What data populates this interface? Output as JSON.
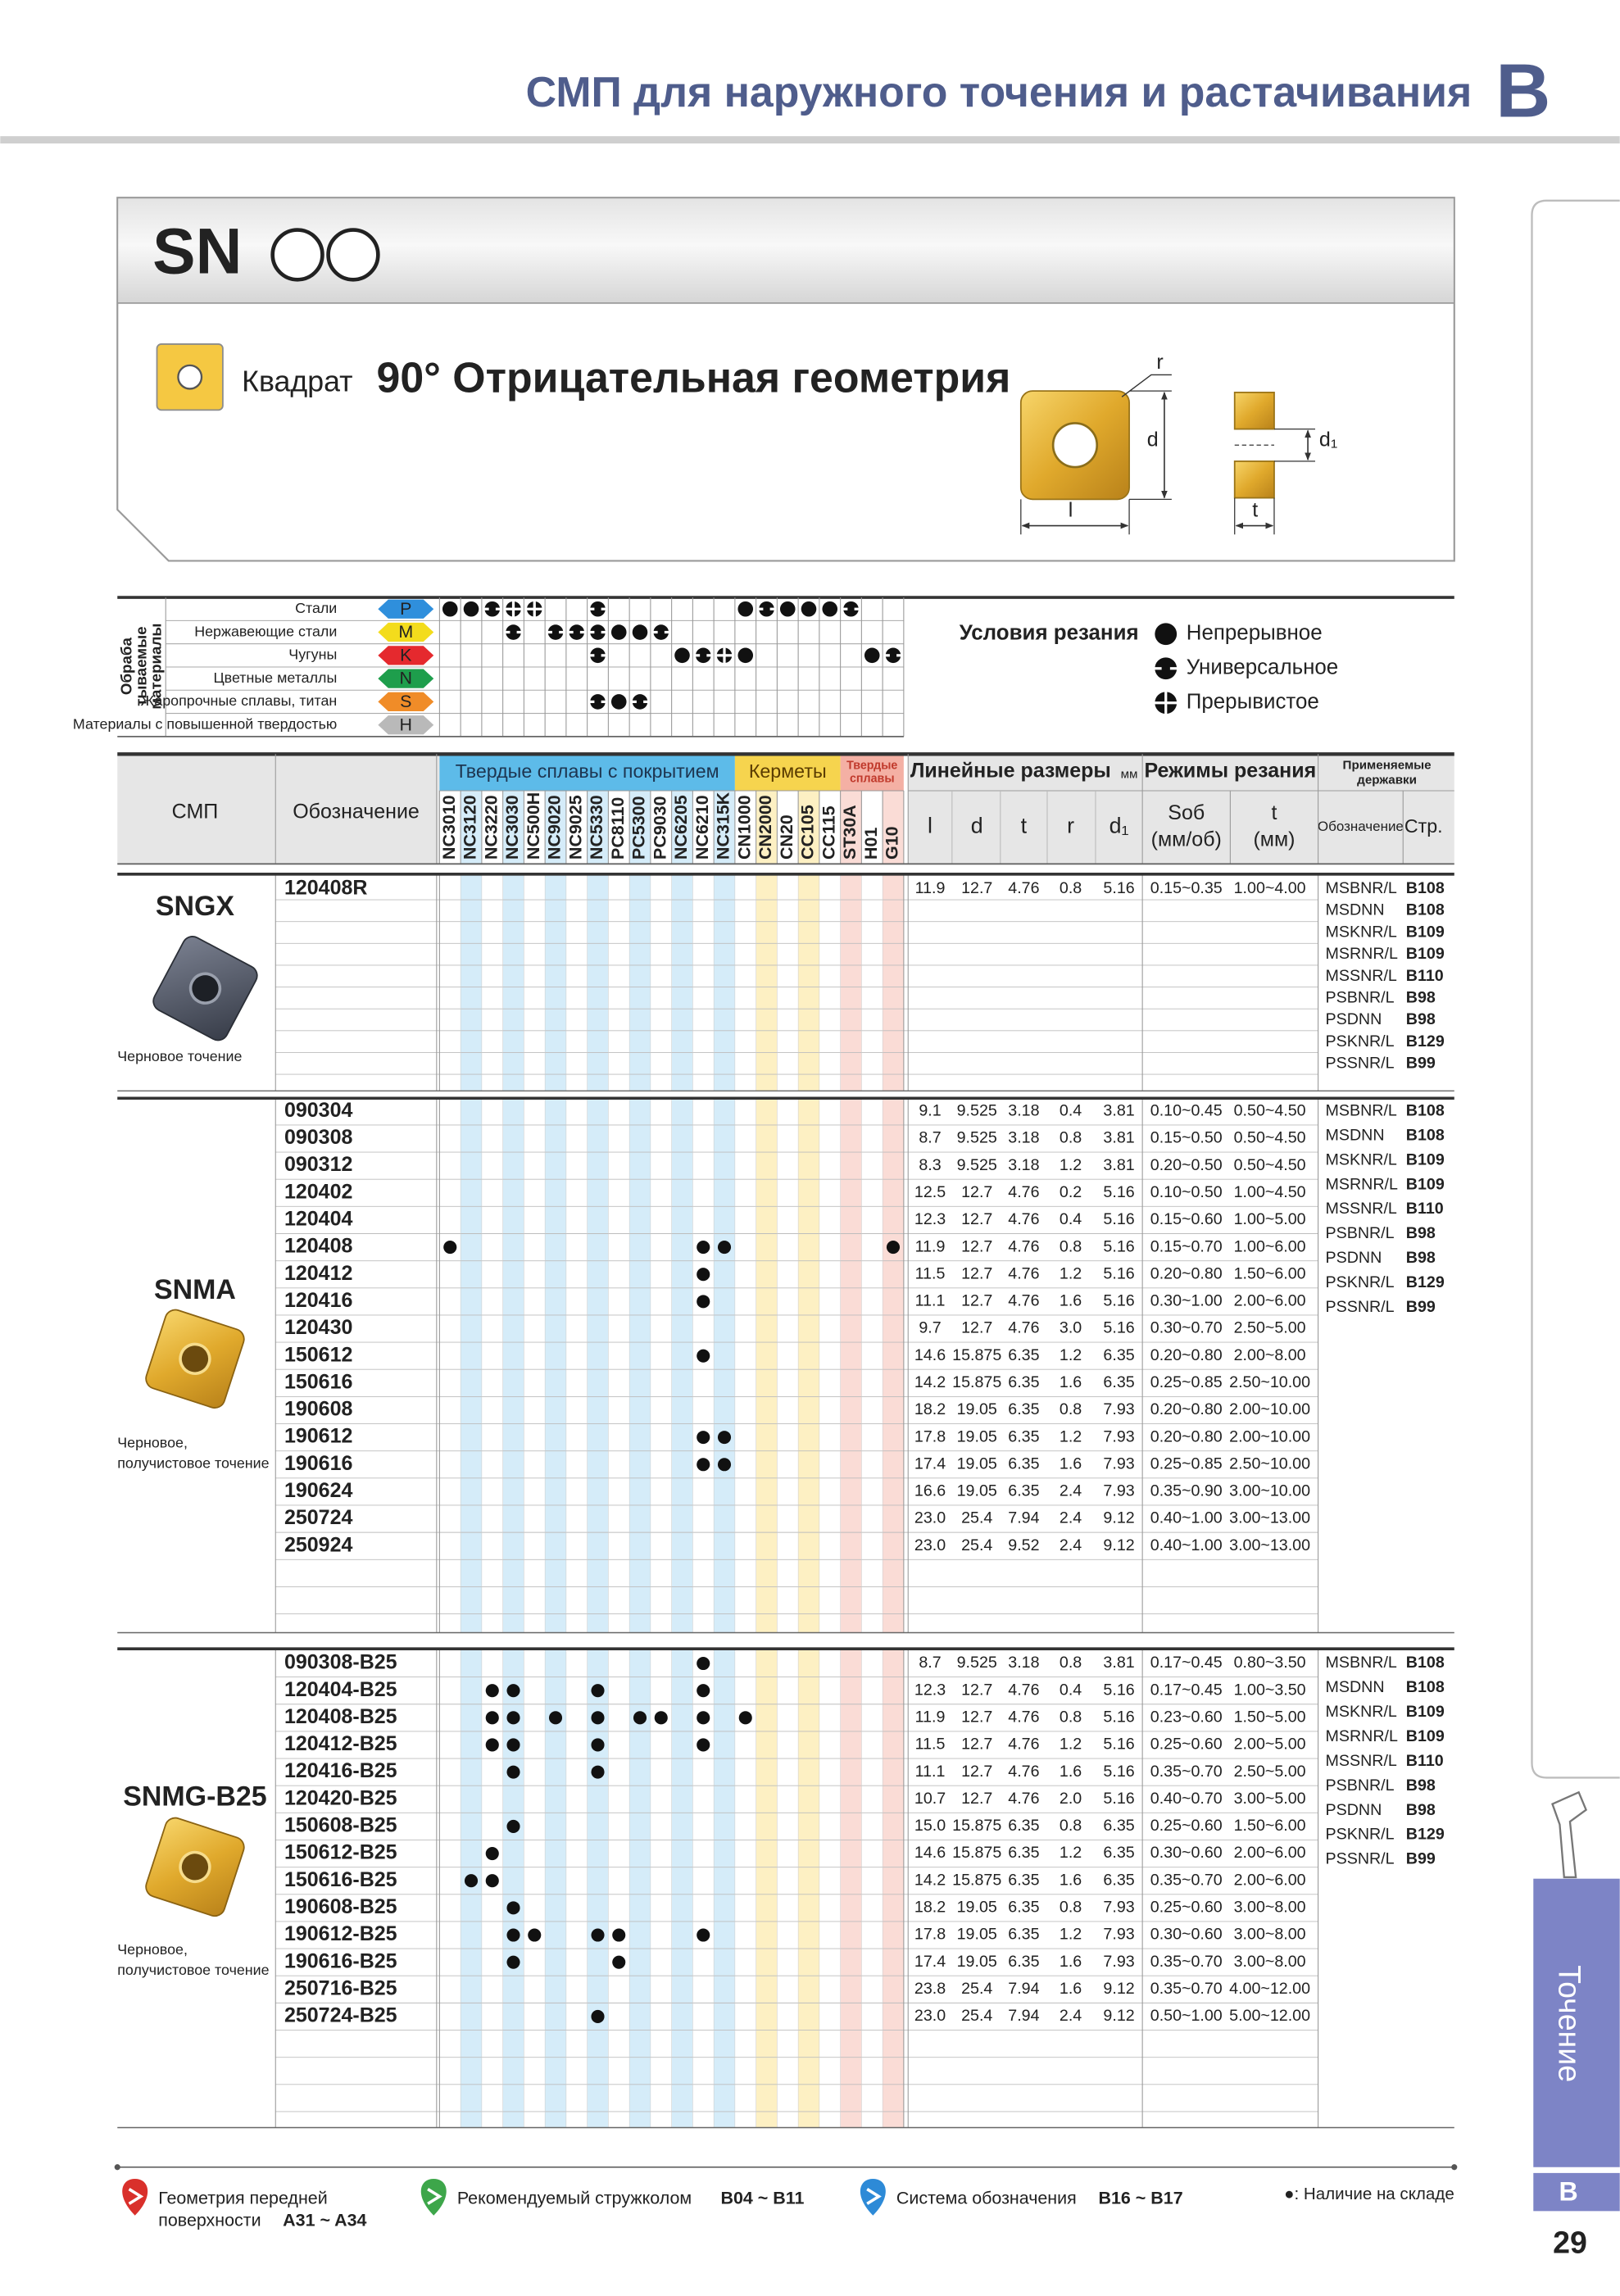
{
  "header": {
    "title": "СМП для наружного точения и растачивания",
    "section": "B"
  },
  "banner": {
    "family": "SN",
    "shape": "Квадрат",
    "geometry": "90° Отрицательная геометрия",
    "diagram": {
      "r": "r",
      "d": "d",
      "l": "l",
      "t": "t",
      "d1": "d₁"
    }
  },
  "materials": {
    "label": [
      "Обраба",
      "тываемые",
      "материалы"
    ],
    "rows": [
      {
        "name": "Стали",
        "code": "P",
        "color": "#2f8fdc",
        "symbols": [
          "continuous",
          "continuous",
          "universal",
          "interrupted",
          "interrupted",
          null,
          null,
          "universal",
          null,
          null,
          null,
          null,
          null,
          null,
          "continuous",
          "universal",
          "continuous",
          "continuous",
          "continuous",
          "universal",
          null,
          null
        ]
      },
      {
        "name": "Нержавеющие стали",
        "code": "M",
        "color": "#f3dc1c",
        "symbols": [
          null,
          null,
          null,
          "universal",
          null,
          "universal",
          "universal",
          "universal",
          "continuous",
          "continuous",
          "universal",
          null,
          null,
          null,
          null,
          null,
          null,
          null,
          null,
          null,
          null,
          null
        ]
      },
      {
        "name": "Чугуны",
        "code": "K",
        "color": "#e5292e",
        "symbols": [
          null,
          null,
          null,
          null,
          null,
          null,
          null,
          "universal",
          null,
          null,
          null,
          "continuous",
          "universal",
          "interrupted",
          "continuous",
          null,
          null,
          null,
          null,
          null,
          "continuous",
          "universal"
        ]
      },
      {
        "name": "Цветные металлы",
        "code": "N",
        "color": "#1e9e4c",
        "symbols": [
          null,
          null,
          null,
          null,
          null,
          null,
          null,
          null,
          null,
          null,
          null,
          null,
          null,
          null,
          null,
          null,
          null,
          null,
          null,
          null,
          null,
          null
        ]
      },
      {
        "name": "Жаропрочные сплавы, титан",
        "code": "S",
        "color": "#f08c28",
        "symbols": [
          null,
          null,
          null,
          null,
          null,
          null,
          null,
          "universal",
          "continuous",
          "universal",
          null,
          null,
          null,
          null,
          null,
          null,
          null,
          null,
          null,
          null,
          null,
          null
        ]
      },
      {
        "name": "Материалы с повышенной твердостью",
        "code": "H",
        "color": "#b9b9b9",
        "symbols": [
          null,
          null,
          null,
          null,
          null,
          null,
          null,
          null,
          null,
          null,
          null,
          null,
          null,
          null,
          null,
          null,
          null,
          null,
          null,
          null,
          null,
          null
        ]
      }
    ]
  },
  "legend": {
    "title": "Условия резания",
    "items": [
      {
        "kind": "continuous",
        "label": "Непрерывное"
      },
      {
        "kind": "universal",
        "label": "Универсальное"
      },
      {
        "kind": "interrupted",
        "label": "Прерывистое"
      }
    ]
  },
  "table": {
    "insert_header": "СМП",
    "code_header": "Обозначение",
    "grade_groups": [
      {
        "label": [
          "Твердые сплавы с покрытием"
        ],
        "color": "#5dbbe9",
        "stripe": "#d5ecf9",
        "grades": [
          "NC3010",
          "NC3120",
          "NC3220",
          "NC3030",
          "NC500H",
          "NC9020",
          "NC9025",
          "NC5330",
          "PC8110",
          "PC5300",
          "PC9030",
          "NC6205",
          "NC6210",
          "NC315K"
        ]
      },
      {
        "label": [
          "Керметы"
        ],
        "color": "#f6d44e",
        "stripe": "#fdf0c3",
        "grades": [
          "CN1000",
          "CN2000",
          "CN20",
          "CC105",
          "CC115"
        ]
      },
      {
        "label": [
          "Твердые",
          "сплавы"
        ],
        "color": "#f4b0a4",
        "stripe": "#fadcd6",
        "grades": [
          "ST30A",
          "H01",
          "G10"
        ]
      }
    ],
    "dims_header": "Линейные размеры",
    "dims_unit": "мм",
    "dims": [
      "l",
      "d",
      "t",
      "r",
      "d₁"
    ],
    "cutting_header": "Режимы резания",
    "feed_header": [
      "Sоб",
      "(мм/об)"
    ],
    "depth_header": [
      "t",
      "(мм)"
    ],
    "holders_header": [
      "Применяемые",
      "державки"
    ],
    "holder_col": "Обозначение",
    "page_col": "Стр."
  },
  "groups": [
    {
      "name": "SNGX",
      "caption": [
        "Черновое точение"
      ],
      "rows": [
        {
          "code": "120408R",
          "dims": [
            "11.9",
            "12.7",
            "4.76",
            "0.8",
            "5.16"
          ],
          "feed": "0.15~0.35",
          "depth": "1.00~4.00"
        }
      ],
      "holders": [
        {
          "name": "MSBNR/L",
          "page": "B108"
        },
        {
          "name": "MSDNN",
          "page": "B108"
        },
        {
          "name": "MSKNR/L",
          "page": "B109"
        },
        {
          "name": "MSRNR/L",
          "page": "B109"
        },
        {
          "name": "MSSNR/L",
          "page": "B110"
        },
        {
          "name": "PSBNR/L",
          "page": "B98"
        },
        {
          "name": "PSDNN",
          "page": "B98"
        },
        {
          "name": "PSKNR/L",
          "page": "B129"
        },
        {
          "name": "PSSNR/L",
          "page": "B99"
        }
      ]
    },
    {
      "name": "SNMA",
      "caption": [
        "Черновое,",
        "получистовое точение"
      ],
      "rows": [
        {
          "code": "090304",
          "dims": [
            "9.1",
            "9.525",
            "3.18",
            "0.4",
            "3.81"
          ],
          "feed": "0.10~0.45",
          "depth": "0.50~4.50"
        },
        {
          "code": "090308",
          "dims": [
            "8.7",
            "9.525",
            "3.18",
            "0.8",
            "3.81"
          ],
          "feed": "0.15~0.50",
          "depth": "0.50~4.50"
        },
        {
          "code": "090312",
          "dims": [
            "8.3",
            "9.525",
            "3.18",
            "1.2",
            "3.81"
          ],
          "feed": "0.20~0.50",
          "depth": "0.50~4.50"
        },
        {
          "code": "120402",
          "dims": [
            "12.5",
            "12.7",
            "4.76",
            "0.2",
            "5.16"
          ],
          "feed": "0.10~0.50",
          "depth": "1.00~4.50"
        },
        {
          "code": "120404",
          "dims": [
            "12.3",
            "12.7",
            "4.76",
            "0.4",
            "5.16"
          ],
          "feed": "0.15~0.60",
          "depth": "1.00~5.00"
        },
        {
          "code": "120408",
          "dims": [
            "11.9",
            "12.7",
            "4.76",
            "0.8",
            "5.16"
          ],
          "feed": "0.15~0.70",
          "depth": "1.00~6.00",
          "stock": [
            "NC3010",
            "NC6210",
            "NC315K",
            "G10"
          ]
        },
        {
          "code": "120412",
          "dims": [
            "11.5",
            "12.7",
            "4.76",
            "1.2",
            "5.16"
          ],
          "feed": "0.20~0.80",
          "depth": "1.50~6.00",
          "stock": [
            "NC6210"
          ]
        },
        {
          "code": "120416",
          "dims": [
            "11.1",
            "12.7",
            "4.76",
            "1.6",
            "5.16"
          ],
          "feed": "0.30~1.00",
          "depth": "2.00~6.00",
          "stock": [
            "NC6210"
          ]
        },
        {
          "code": "120430",
          "dims": [
            "9.7",
            "12.7",
            "4.76",
            "3.0",
            "5.16"
          ],
          "feed": "0.30~0.70",
          "depth": "2.50~5.00"
        },
        {
          "code": "150612",
          "dims": [
            "14.6",
            "15.875",
            "6.35",
            "1.2",
            "6.35"
          ],
          "feed": "0.20~0.80",
          "depth": "2.00~8.00",
          "stock": [
            "NC6210"
          ]
        },
        {
          "code": "150616",
          "dims": [
            "14.2",
            "15.875",
            "6.35",
            "1.6",
            "6.35"
          ],
          "feed": "0.25~0.85",
          "depth": "2.50~10.00"
        },
        {
          "code": "190608",
          "dims": [
            "18.2",
            "19.05",
            "6.35",
            "0.8",
            "7.93"
          ],
          "feed": "0.20~0.80",
          "depth": "2.00~10.00"
        },
        {
          "code": "190612",
          "dims": [
            "17.8",
            "19.05",
            "6.35",
            "1.2",
            "7.93"
          ],
          "feed": "0.20~0.80",
          "depth": "2.00~10.00",
          "stock": [
            "NC6210",
            "NC315K"
          ]
        },
        {
          "code": "190616",
          "dims": [
            "17.4",
            "19.05",
            "6.35",
            "1.6",
            "7.93"
          ],
          "feed": "0.25~0.85",
          "depth": "2.50~10.00",
          "stock": [
            "NC6210",
            "NC315K"
          ]
        },
        {
          "code": "190624",
          "dims": [
            "16.6",
            "19.05",
            "6.35",
            "2.4",
            "7.93"
          ],
          "feed": "0.35~0.90",
          "depth": "3.00~10.00"
        },
        {
          "code": "250724",
          "dims": [
            "23.0",
            "25.4",
            "7.94",
            "2.4",
            "9.12"
          ],
          "feed": "0.40~1.00",
          "depth": "3.00~13.00"
        },
        {
          "code": "250924",
          "dims": [
            "23.0",
            "25.4",
            "9.52",
            "2.4",
            "9.12"
          ],
          "feed": "0.40~1.00",
          "depth": "3.00~13.00"
        }
      ],
      "holders": [
        {
          "name": "MSBNR/L",
          "page": "B108"
        },
        {
          "name": "MSDNN",
          "page": "B108"
        },
        {
          "name": "MSKNR/L",
          "page": "B109"
        },
        {
          "name": "MSRNR/L",
          "page": "B109"
        },
        {
          "name": "MSSNR/L",
          "page": "B110"
        },
        {
          "name": "PSBNR/L",
          "page": "B98"
        },
        {
          "name": "PSDNN",
          "page": "B98"
        },
        {
          "name": "PSKNR/L",
          "page": "B129"
        },
        {
          "name": "PSSNR/L",
          "page": "B99"
        }
      ]
    },
    {
      "name": "SNMG-B25",
      "caption": [
        "Черновое,",
        "получистовое точение"
      ],
      "rows": [
        {
          "code": "090308-B25",
          "dims": [
            "8.7",
            "9.525",
            "3.18",
            "0.8",
            "3.81"
          ],
          "feed": "0.17~0.45",
          "depth": "0.80~3.50",
          "stock": [
            "NC6210"
          ]
        },
        {
          "code": "120404-B25",
          "dims": [
            "12.3",
            "12.7",
            "4.76",
            "0.4",
            "5.16"
          ],
          "feed": "0.17~0.45",
          "depth": "1.00~3.50",
          "stock": [
            "NC3220",
            "NC3030",
            "NC5330",
            "NC6210"
          ]
        },
        {
          "code": "120408-B25",
          "dims": [
            "11.9",
            "12.7",
            "4.76",
            "0.8",
            "5.16"
          ],
          "feed": "0.23~0.60",
          "depth": "1.50~5.00",
          "stock": [
            "NC3220",
            "NC3030",
            "NC9020",
            "NC5330",
            "PC5300",
            "PC9030",
            "NC6210",
            "CN1000"
          ]
        },
        {
          "code": "120412-B25",
          "dims": [
            "11.5",
            "12.7",
            "4.76",
            "1.2",
            "5.16"
          ],
          "feed": "0.25~0.60",
          "depth": "2.00~5.00",
          "stock": [
            "NC3220",
            "NC3030",
            "NC5330",
            "NC6210"
          ]
        },
        {
          "code": "120416-B25",
          "dims": [
            "11.1",
            "12.7",
            "4.76",
            "1.6",
            "5.16"
          ],
          "feed": "0.35~0.70",
          "depth": "2.50~5.00",
          "stock": [
            "NC3030",
            "NC5330"
          ]
        },
        {
          "code": "120420-B25",
          "dims": [
            "10.7",
            "12.7",
            "4.76",
            "2.0",
            "5.16"
          ],
          "feed": "0.40~0.70",
          "depth": "3.00~5.00"
        },
        {
          "code": "150608-B25",
          "dims": [
            "15.0",
            "15.875",
            "6.35",
            "0.8",
            "6.35"
          ],
          "feed": "0.25~0.60",
          "depth": "1.50~6.00",
          "stock": [
            "NC3030"
          ]
        },
        {
          "code": "150612-B25",
          "dims": [
            "14.6",
            "15.875",
            "6.35",
            "1.2",
            "6.35"
          ],
          "feed": "0.30~0.60",
          "depth": "2.00~6.00",
          "stock": [
            "NC3220"
          ]
        },
        {
          "code": "150616-B25",
          "dims": [
            "14.2",
            "15.875",
            "6.35",
            "1.6",
            "6.35"
          ],
          "feed": "0.35~0.70",
          "depth": "2.00~6.00",
          "stock": [
            "NC3120",
            "NC3220"
          ]
        },
        {
          "code": "190608-B25",
          "dims": [
            "18.2",
            "19.05",
            "6.35",
            "0.8",
            "7.93"
          ],
          "feed": "0.25~0.60",
          "depth": "3.00~8.00",
          "stock": [
            "NC3030"
          ]
        },
        {
          "code": "190612-B25",
          "dims": [
            "17.8",
            "19.05",
            "6.35",
            "1.2",
            "7.93"
          ],
          "feed": "0.30~0.60",
          "depth": "3.00~8.00",
          "stock": [
            "NC3030",
            "NC500H",
            "NC5330",
            "PC8110",
            "NC6210"
          ]
        },
        {
          "code": "190616-B25",
          "dims": [
            "17.4",
            "19.05",
            "6.35",
            "1.6",
            "7.93"
          ],
          "feed": "0.35~0.70",
          "depth": "3.00~8.00",
          "stock": [
            "NC3030",
            "PC8110"
          ]
        },
        {
          "code": "250716-B25",
          "dims": [
            "23.8",
            "25.4",
            "7.94",
            "1.6",
            "9.12"
          ],
          "feed": "0.35~0.70",
          "depth": "4.00~12.00"
        },
        {
          "code": "250724-B25",
          "dims": [
            "23.0",
            "25.4",
            "7.94",
            "2.4",
            "9.12"
          ],
          "feed": "0.50~1.00",
          "depth": "5.00~12.00",
          "stock": [
            "NC5330"
          ]
        }
      ],
      "holders": [
        {
          "name": "MSBNR/L",
          "page": "B108"
        },
        {
          "name": "MSDNN",
          "page": "B108"
        },
        {
          "name": "MSKNR/L",
          "page": "B109"
        },
        {
          "name": "MSRNR/L",
          "page": "B109"
        },
        {
          "name": "MSSNR/L",
          "page": "B110"
        },
        {
          "name": "PSBNR/L",
          "page": "B98"
        },
        {
          "name": "PSDNN",
          "page": "B98"
        },
        {
          "name": "PSKNR/L",
          "page": "B129"
        },
        {
          "name": "PSSNR/L",
          "page": "B99"
        }
      ]
    }
  ],
  "footer": {
    "links": [
      {
        "text": [
          "Геометрия передней",
          "поверхности"
        ],
        "pages": "A31 ~ A34"
      },
      {
        "text": [
          "Рекомендуемый стружколом"
        ],
        "pages": "B04 ~ B11"
      },
      {
        "text": [
          "Система обозначения"
        ],
        "pages": "B16 ~ B17"
      }
    ],
    "note": "●: Наличие на складе"
  },
  "side": {
    "tab": "Точение",
    "section": "B",
    "page": "29"
  }
}
